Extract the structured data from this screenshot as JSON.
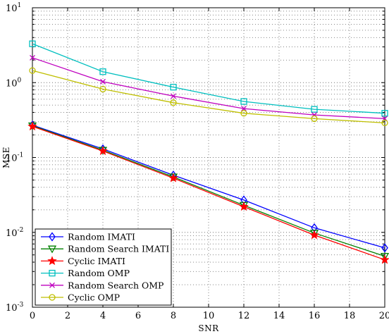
{
  "chart_data": {
    "type": "line",
    "xlabel": "SNR",
    "ylabel": "MSE",
    "yscale": "log",
    "xlim": [
      0,
      20
    ],
    "ylim": [
      0.001,
      10
    ],
    "grid": true,
    "legend_position": "bottom-left",
    "x_ticks": [
      "0",
      "2",
      "4",
      "6",
      "8",
      "10",
      "12",
      "14",
      "16",
      "18",
      "20"
    ],
    "y_ticks": [
      {
        "base": "10",
        "exp": "-3"
      },
      {
        "base": "10",
        "exp": "-2"
      },
      {
        "base": "10",
        "exp": "-1"
      },
      {
        "base": "10",
        "exp": "0"
      },
      {
        "base": "10",
        "exp": "1"
      }
    ],
    "x": [
      0,
      4,
      8,
      12,
      16,
      20
    ],
    "series": [
      {
        "name": "Random IMATI",
        "color": "#0000ff",
        "marker": "diamond",
        "values": [
          0.27,
          0.13,
          0.058,
          0.027,
          0.0115,
          0.0062
        ]
      },
      {
        "name": "Random Search IMATI",
        "color": "#008000",
        "marker": "triangle-down",
        "values": [
          0.265,
          0.125,
          0.055,
          0.023,
          0.0098,
          0.0048
        ]
      },
      {
        "name": "Cyclic IMATI",
        "color": "#ff0000",
        "marker": "star",
        "values": [
          0.26,
          0.122,
          0.053,
          0.022,
          0.0092,
          0.0043
        ]
      },
      {
        "name": "Random OMP",
        "color": "#00bfbf",
        "marker": "square",
        "values": [
          3.3,
          1.4,
          0.87,
          0.56,
          0.44,
          0.39
        ]
      },
      {
        "name": "Random Search OMP",
        "color": "#bf00bf",
        "marker": "x",
        "values": [
          2.15,
          1.03,
          0.66,
          0.45,
          0.37,
          0.33
        ]
      },
      {
        "name": "Cyclic OMP",
        "color": "#bfbf00",
        "marker": "circle",
        "values": [
          1.45,
          0.82,
          0.54,
          0.39,
          0.33,
          0.29
        ]
      }
    ]
  }
}
